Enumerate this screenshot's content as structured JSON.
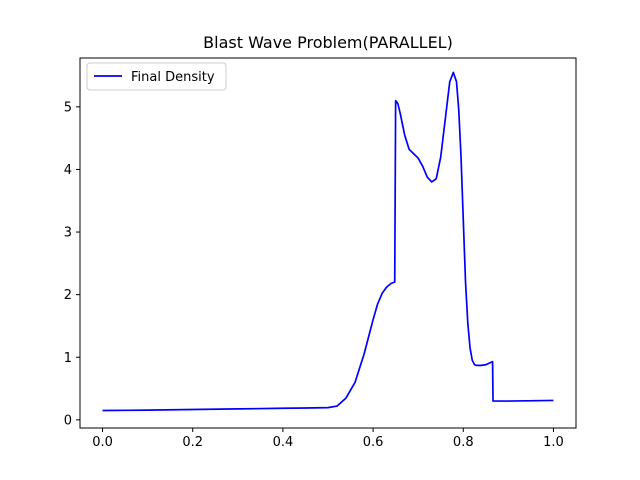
{
  "chart_data": {
    "type": "line",
    "title": "Blast Wave Problem(PARALLEL)",
    "xlabel": "",
    "ylabel": "",
    "xlim": [
      -0.05,
      1.05
    ],
    "ylim": [
      -0.13,
      5.78
    ],
    "xticks": [
      0.0,
      0.2,
      0.4,
      0.6,
      0.8,
      1.0
    ],
    "xtick_labels": [
      "0.0",
      "0.2",
      "0.4",
      "0.6",
      "0.8",
      "1.0"
    ],
    "yticks": [
      0,
      1,
      2,
      3,
      4,
      5
    ],
    "ytick_labels": [
      "0",
      "1",
      "2",
      "3",
      "4",
      "5"
    ],
    "grid": false,
    "legend_position": "top-left",
    "series": [
      {
        "name": "Final Density",
        "color": "#0000ff",
        "x": [
          0.0,
          0.1,
          0.2,
          0.3,
          0.4,
          0.45,
          0.5,
          0.52,
          0.54,
          0.56,
          0.58,
          0.6,
          0.61,
          0.62,
          0.63,
          0.64,
          0.648,
          0.65,
          0.655,
          0.66,
          0.67,
          0.68,
          0.69,
          0.7,
          0.71,
          0.72,
          0.73,
          0.74,
          0.75,
          0.76,
          0.77,
          0.778,
          0.785,
          0.79,
          0.795,
          0.8,
          0.805,
          0.81,
          0.815,
          0.82,
          0.825,
          0.83,
          0.84,
          0.85,
          0.865,
          0.866,
          0.9,
          1.0
        ],
        "values": [
          0.15,
          0.155,
          0.165,
          0.175,
          0.185,
          0.19,
          0.195,
          0.22,
          0.35,
          0.6,
          1.05,
          1.6,
          1.85,
          2.02,
          2.12,
          2.18,
          2.2,
          5.1,
          5.05,
          4.9,
          4.55,
          4.32,
          4.25,
          4.18,
          4.05,
          3.88,
          3.8,
          3.85,
          4.2,
          4.8,
          5.4,
          5.55,
          5.4,
          4.95,
          4.2,
          3.2,
          2.2,
          1.55,
          1.15,
          0.95,
          0.88,
          0.87,
          0.87,
          0.88,
          0.93,
          0.3,
          0.3,
          0.31
        ]
      }
    ]
  }
}
